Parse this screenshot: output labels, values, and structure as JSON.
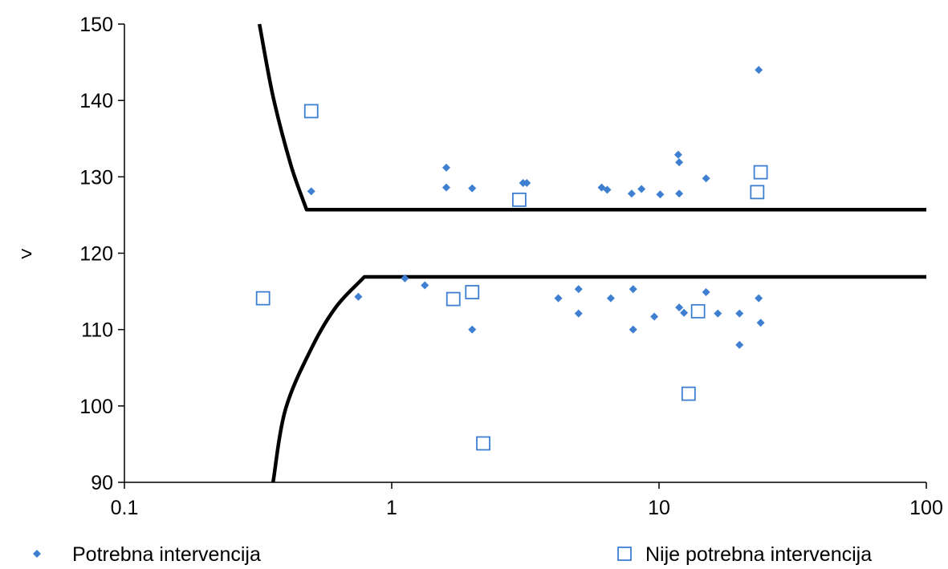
{
  "chart_data": {
    "type": "scatter",
    "x_scale": "log",
    "xlim": [
      0.1,
      100
    ],
    "ylim": [
      90,
      150
    ],
    "x_ticks": [
      "0.1",
      "1",
      "10",
      "100"
    ],
    "y_ticks": [
      "90",
      "100",
      "110",
      "120",
      "130",
      "140",
      "150"
    ],
    "ylabel": ">",
    "xlabel": "",
    "grid": false,
    "legend": "bottom",
    "series": [
      {
        "name": "Potrebna intervencija",
        "marker": "diamond-filled",
        "color": "#3f7fd1",
        "points": [
          [
            0.5,
            128.1
          ],
          [
            0.75,
            114.3
          ],
          [
            1.12,
            116.7
          ],
          [
            1.33,
            115.8
          ],
          [
            1.6,
            131.2
          ],
          [
            1.6,
            128.6
          ],
          [
            2.0,
            128.5
          ],
          [
            2.0,
            110.0
          ],
          [
            3.1,
            129.2
          ],
          [
            3.2,
            129.2
          ],
          [
            4.2,
            114.1
          ],
          [
            5.0,
            115.3
          ],
          [
            5.0,
            112.1
          ],
          [
            6.1,
            128.6
          ],
          [
            6.4,
            128.3
          ],
          [
            6.6,
            114.1
          ],
          [
            7.9,
            127.8
          ],
          [
            8.0,
            115.3
          ],
          [
            8.0,
            110.0
          ],
          [
            8.6,
            128.4
          ],
          [
            9.6,
            111.7
          ],
          [
            10.1,
            127.7
          ],
          [
            11.8,
            132.9
          ],
          [
            11.9,
            131.9
          ],
          [
            11.9,
            127.8
          ],
          [
            11.9,
            112.9
          ],
          [
            12.4,
            112.2
          ],
          [
            15.0,
            129.8
          ],
          [
            15.0,
            114.9
          ],
          [
            16.6,
            112.1
          ],
          [
            20.0,
            108.0
          ],
          [
            20.0,
            112.1
          ],
          [
            23.6,
            144.0
          ],
          [
            23.6,
            114.1
          ],
          [
            24.0,
            110.9
          ]
        ]
      },
      {
        "name": "Nije potrebna intervencija",
        "marker": "square-open",
        "color": "#3f7fd1",
        "points": [
          [
            0.33,
            114.1
          ],
          [
            0.5,
            138.6
          ],
          [
            1.7,
            114.0
          ],
          [
            2.0,
            114.9
          ],
          [
            2.2,
            95.1
          ],
          [
            3.0,
            127.0
          ],
          [
            12.9,
            101.6
          ],
          [
            14.0,
            112.4
          ],
          [
            23.3,
            128.0
          ],
          [
            24.0,
            130.6
          ]
        ]
      }
    ],
    "boundaries": [
      {
        "name": "upper",
        "color": "#000000",
        "points": [
          [
            0.32,
            150
          ],
          [
            0.36,
            140.5
          ],
          [
            0.42,
            131.5
          ],
          [
            0.48,
            125.7
          ],
          [
            100,
            125.7
          ]
        ]
      },
      {
        "name": "lower",
        "color": "#000000",
        "points": [
          [
            0.36,
            90
          ],
          [
            0.4,
            99.5
          ],
          [
            0.5,
            107.5
          ],
          [
            0.62,
            113
          ],
          [
            0.79,
            116.9
          ],
          [
            100,
            116.9
          ]
        ]
      }
    ]
  }
}
